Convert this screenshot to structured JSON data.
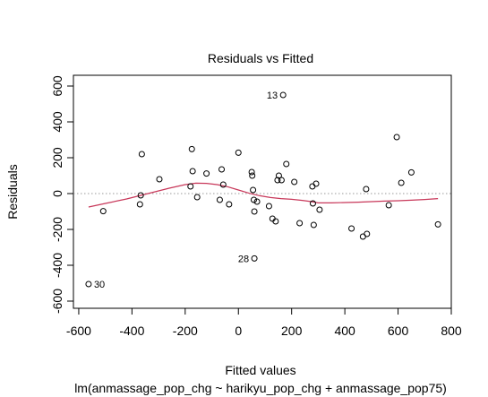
{
  "chart_data": {
    "type": "scatter",
    "title": "Residuals vs Fitted",
    "xlabel": "Fitted values",
    "subtitle": "lm(anmassage_pop_chg ~ harikyu_pop_chg + anmassage_pop75)",
    "ylabel": "Residuals",
    "xlim": [
      -620,
      800
    ],
    "ylim": [
      -640,
      660
    ],
    "xticks": [
      -600,
      -400,
      -200,
      0,
      200,
      400,
      600,
      800
    ],
    "yticks": [
      -600,
      -400,
      -200,
      0,
      200,
      400,
      600
    ],
    "xtick_labels": [
      "-600",
      "-400",
      "-200",
      "0",
      "200",
      "400",
      "600",
      "800"
    ],
    "ytick_labels": [
      "-600",
      "-400",
      "-200",
      "0",
      "200",
      "400",
      "600"
    ],
    "grid": false,
    "reference_line_y": 0,
    "point_color": "#000000",
    "smooth_color": "#c8385a",
    "reference_color": "#999999",
    "points": [
      {
        "x": -563,
        "y": -505
      },
      {
        "x": -508,
        "y": -98
      },
      {
        "x": -370,
        "y": -60
      },
      {
        "x": -367,
        "y": -10
      },
      {
        "x": -363,
        "y": 220
      },
      {
        "x": -297,
        "y": 80
      },
      {
        "x": -180,
        "y": 40
      },
      {
        "x": -175,
        "y": 248
      },
      {
        "x": -172,
        "y": 125
      },
      {
        "x": -155,
        "y": -20
      },
      {
        "x": -120,
        "y": 112
      },
      {
        "x": -70,
        "y": -35
      },
      {
        "x": -63,
        "y": 135
      },
      {
        "x": -57,
        "y": 50
      },
      {
        "x": -35,
        "y": -60
      },
      {
        "x": 0,
        "y": 228
      },
      {
        "x": 50,
        "y": 120
      },
      {
        "x": 52,
        "y": 100
      },
      {
        "x": 55,
        "y": 20
      },
      {
        "x": 58,
        "y": -35
      },
      {
        "x": 60,
        "y": -100
      },
      {
        "x": 60,
        "y": -362
      },
      {
        "x": 70,
        "y": -45
      },
      {
        "x": 115,
        "y": -70
      },
      {
        "x": 128,
        "y": -140
      },
      {
        "x": 140,
        "y": -155
      },
      {
        "x": 147,
        "y": 75
      },
      {
        "x": 152,
        "y": 100
      },
      {
        "x": 162,
        "y": 75
      },
      {
        "x": 168,
        "y": 550
      },
      {
        "x": 180,
        "y": 165
      },
      {
        "x": 210,
        "y": 65
      },
      {
        "x": 230,
        "y": -165
      },
      {
        "x": 278,
        "y": 40
      },
      {
        "x": 280,
        "y": -55
      },
      {
        "x": 283,
        "y": -175
      },
      {
        "x": 292,
        "y": 55
      },
      {
        "x": 305,
        "y": -90
      },
      {
        "x": 425,
        "y": -195
      },
      {
        "x": 468,
        "y": -240
      },
      {
        "x": 480,
        "y": 25
      },
      {
        "x": 483,
        "y": -225
      },
      {
        "x": 565,
        "y": -65
      },
      {
        "x": 595,
        "y": 315
      },
      {
        "x": 612,
        "y": 60
      },
      {
        "x": 650,
        "y": 118
      },
      {
        "x": 750,
        "y": -172
      }
    ],
    "smooth_line": {
      "x": [
        -563,
        -500,
        -420,
        -340,
        -260,
        -200,
        -160,
        -120,
        -80,
        -40,
        0,
        40,
        80,
        120,
        160,
        200,
        240,
        275,
        300,
        350,
        400,
        450,
        500,
        550,
        600,
        650,
        700,
        750
      ],
      "y": [
        -75,
        -55,
        -30,
        0,
        30,
        50,
        58,
        57,
        50,
        38,
        20,
        2,
        -12,
        -22,
        -28,
        -32,
        -38,
        -45,
        -52,
        -52,
        -50,
        -48,
        -45,
        -42,
        -40,
        -37,
        -33,
        -28
      ]
    },
    "annotations": [
      {
        "label": "13",
        "x": 168,
        "y": 550,
        "side": "left"
      },
      {
        "label": "28",
        "x": 60,
        "y": -362,
        "side": "left"
      },
      {
        "label": "30",
        "x": -563,
        "y": -505,
        "side": "right"
      }
    ]
  }
}
